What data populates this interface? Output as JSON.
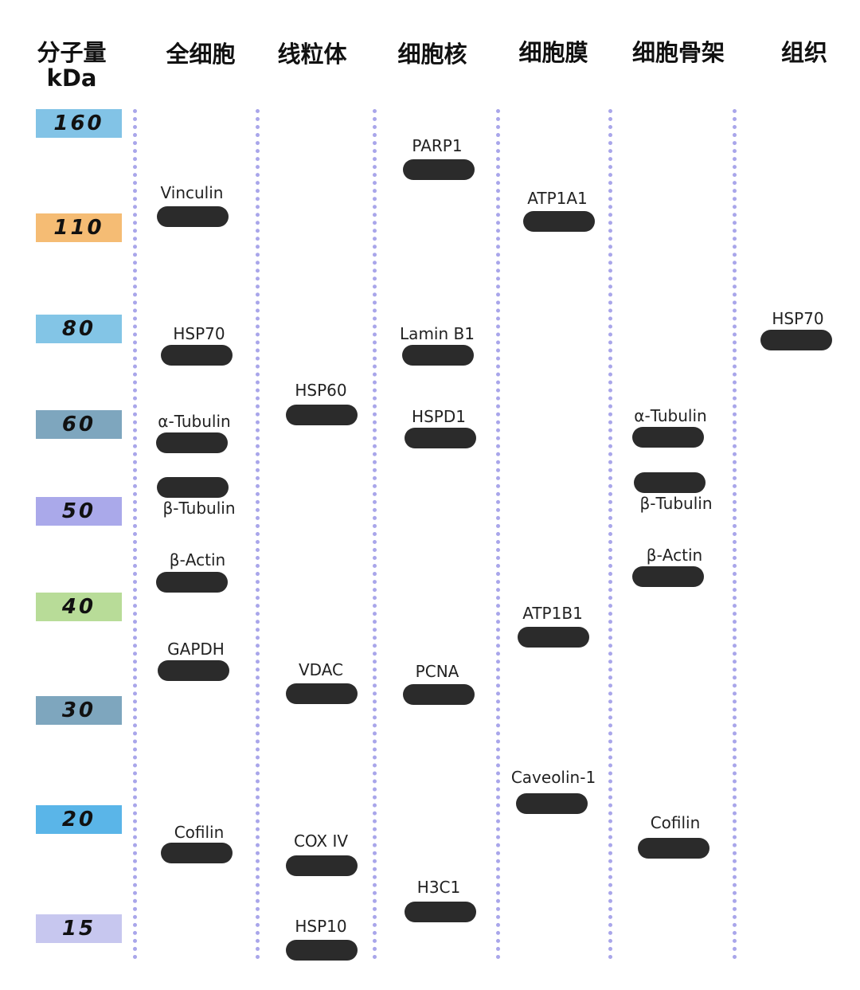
{
  "headers": {
    "mw": "分子量",
    "unit": "kDa",
    "whole_cell": "全细胞",
    "mito": "线粒体",
    "nucleus": "细胞核",
    "membrane": "细胞膜",
    "cytoskeleton": "细胞骨架",
    "tissue": "组织"
  },
  "markers": [
    {
      "value": "160",
      "color": "#82c3e6"
    },
    {
      "value": "110",
      "color": "#f5bc74"
    },
    {
      "value": "80",
      "color": "#83c5e6"
    },
    {
      "value": "60",
      "color": "#7ea6be"
    },
    {
      "value": "50",
      "color": "#aaa9ea"
    },
    {
      "value": "40",
      "color": "#b8dc98"
    },
    {
      "value": "30",
      "color": "#7ea6be"
    },
    {
      "value": "20",
      "color": "#5ab5e8"
    },
    {
      "value": "15",
      "color": "#c7c7ef"
    }
  ],
  "band_color": "#2b2b2b",
  "divider_color": "#a9a6ea",
  "whole_cell": [
    "Vinculin",
    "HSP70",
    "α-Tubulin",
    "β-Tubulin",
    "β-Actin",
    "GAPDH",
    "Cofilin"
  ],
  "mito": [
    "HSP60",
    "VDAC",
    "COX IV",
    "HSP10"
  ],
  "nucleus": [
    "PARP1",
    "Lamin B1",
    "HSPD1",
    "PCNA",
    "H3C1"
  ],
  "membrane": [
    "ATP1A1",
    "ATP1B1",
    "Caveolin-1"
  ],
  "cytoskeleton": [
    "α-Tubulin",
    "β-Tubulin",
    "β-Actin",
    "Cofilin"
  ],
  "tissue": [
    "HSP70"
  ]
}
